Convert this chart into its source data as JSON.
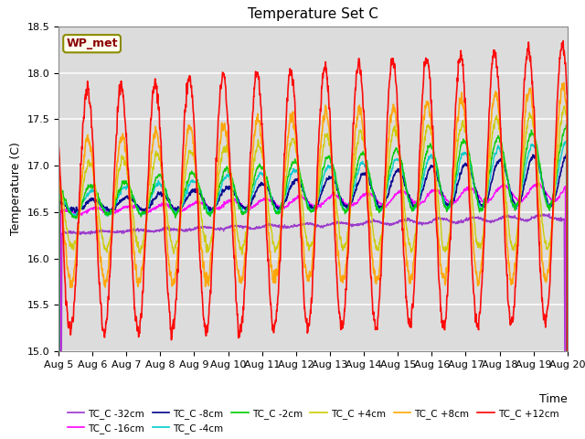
{
  "title": "Temperature Set C",
  "xlabel": "Time",
  "ylabel": "Temperature (C)",
  "ylim": [
    15.0,
    18.5
  ],
  "xlim_days": [
    0,
    15
  ],
  "x_tick_labels": [
    "Aug 5",
    "Aug 6",
    "Aug 7",
    "Aug 8",
    "Aug 9",
    "Aug 10",
    "Aug 11",
    "Aug 12",
    "Aug 13",
    "Aug 14",
    "Aug 15",
    "Aug 16",
    "Aug 17",
    "Aug 18",
    "Aug 19",
    "Aug 20"
  ],
  "wp_met_label": "WP_met",
  "series": [
    {
      "label": "TC_C -32cm",
      "color": "#9932CC",
      "lw": 1.0
    },
    {
      "label": "TC_C -16cm",
      "color": "#FF00FF",
      "lw": 1.0
    },
    {
      "label": "TC_C -8cm",
      "color": "#00008B",
      "lw": 1.2
    },
    {
      "label": "TC_C -4cm",
      "color": "#00CCCC",
      "lw": 1.0
    },
    {
      "label": "TC_C -2cm",
      "color": "#00CC00",
      "lw": 1.0
    },
    {
      "label": "TC_C +4cm",
      "color": "#CCCC00",
      "lw": 1.0
    },
    {
      "label": "TC_C +8cm",
      "color": "#FFA500",
      "lw": 1.2
    },
    {
      "label": "TC_C +12cm",
      "color": "#FF0000",
      "lw": 1.2
    }
  ],
  "bg_color": "#DCDCDC",
  "fig_bg": "#FFFFFF",
  "title_fontsize": 11,
  "label_fontsize": 9,
  "tick_fontsize": 8
}
